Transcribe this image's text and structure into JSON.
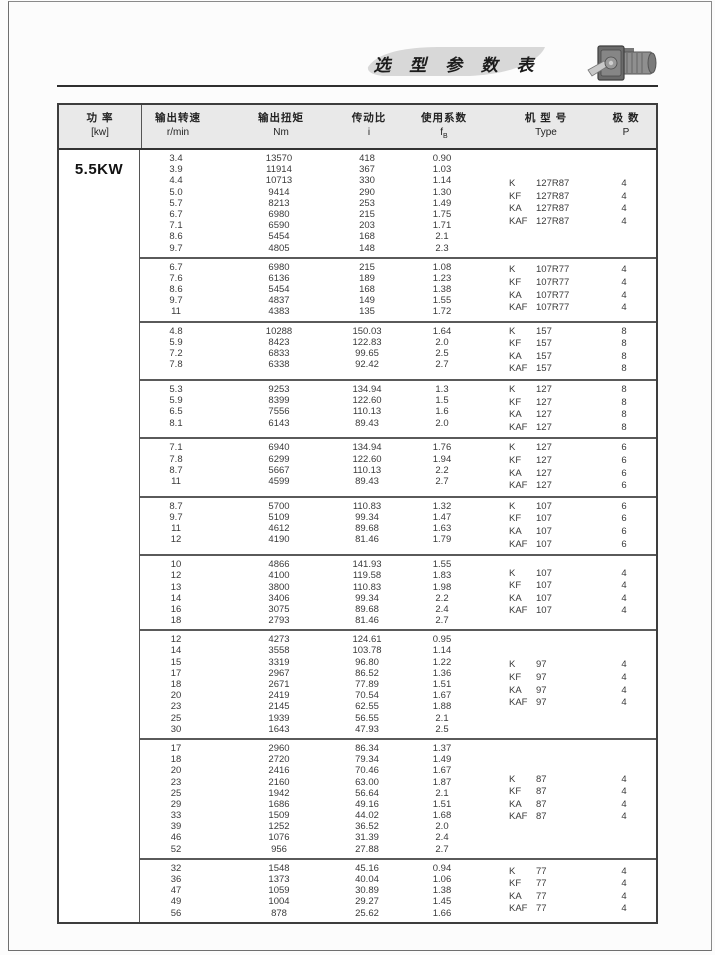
{
  "page": {
    "title": "选 型 参 数 表"
  },
  "colors": {
    "header_bg": "#e9e9e9",
    "banner_fill": "#d8d8d8",
    "rule": "#2e2e2e",
    "text": "#3a3a3a"
  },
  "table": {
    "power": "5.5KW",
    "headers": [
      {
        "line1": "功  率",
        "line2": "[kw]"
      },
      {
        "line1": "输出转速",
        "line2": "r/min"
      },
      {
        "line1": "输出扭矩",
        "line2": "Nm"
      },
      {
        "line1": "传动比",
        "line2": "i"
      },
      {
        "line1": "使用系数",
        "line2": "f",
        "line2_sub": "B"
      },
      {
        "line1": "机 型 号",
        "line2": "Type"
      },
      {
        "line1": "极  数",
        "line2": "P"
      }
    ],
    "blocks": [
      {
        "speeds": [
          "3.4",
          "3.9",
          "4.4",
          "5.0",
          "5.7",
          "6.7",
          "7.1",
          "8.6",
          "9.7"
        ],
        "torques": [
          "13570",
          "11914",
          "10713",
          "9414",
          "8213",
          "6980",
          "6590",
          "5454",
          "4805"
        ],
        "ratios": [
          "418",
          "367",
          "330",
          "290",
          "253",
          "215",
          "203",
          "168",
          "148"
        ],
        "factors": [
          "0.90",
          "1.03",
          "1.14",
          "1.30",
          "1.49",
          "1.75",
          "1.71",
          "2.1",
          "2.3"
        ],
        "types": [
          {
            "prefix": "K",
            "model": "127R87"
          },
          {
            "prefix": "KF",
            "model": "127R87"
          },
          {
            "prefix": "KA",
            "model": "127R87"
          },
          {
            "prefix": "KAF",
            "model": "127R87"
          }
        ],
        "poles": [
          "4",
          "4",
          "4",
          "4"
        ]
      },
      {
        "speeds": [
          "6.7",
          "7.6",
          "8.6",
          "9.7",
          "11"
        ],
        "torques": [
          "6980",
          "6136",
          "5454",
          "4837",
          "4383"
        ],
        "ratios": [
          "215",
          "189",
          "168",
          "149",
          "135"
        ],
        "factors": [
          "1.08",
          "1.23",
          "1.38",
          "1.55",
          "1.72"
        ],
        "types": [
          {
            "prefix": "K",
            "model": "107R77"
          },
          {
            "prefix": "KF",
            "model": "107R77"
          },
          {
            "prefix": "KA",
            "model": "107R77"
          },
          {
            "prefix": "KAF",
            "model": "107R77"
          }
        ],
        "poles": [
          "4",
          "4",
          "4",
          "4"
        ]
      },
      {
        "speeds": [
          "4.8",
          "5.9",
          "7.2",
          "7.8"
        ],
        "torques": [
          "10288",
          "8423",
          "6833",
          "6338"
        ],
        "ratios": [
          "150.03",
          "122.83",
          "99.65",
          "92.42"
        ],
        "factors": [
          "1.64",
          "2.0",
          "2.5",
          "2.7"
        ],
        "types": [
          {
            "prefix": "K",
            "model": "157"
          },
          {
            "prefix": "KF",
            "model": "157"
          },
          {
            "prefix": "KA",
            "model": "157"
          },
          {
            "prefix": "KAF",
            "model": "157"
          }
        ],
        "poles": [
          "8",
          "8",
          "8",
          "8"
        ]
      },
      {
        "speeds": [
          "5.3",
          "5.9",
          "6.5",
          "8.1"
        ],
        "torques": [
          "9253",
          "8399",
          "7556",
          "6143"
        ],
        "ratios": [
          "134.94",
          "122.60",
          "110.13",
          "89.43"
        ],
        "factors": [
          "1.3",
          "1.5",
          "1.6",
          "2.0"
        ],
        "types": [
          {
            "prefix": "K",
            "model": "127"
          },
          {
            "prefix": "KF",
            "model": "127"
          },
          {
            "prefix": "KA",
            "model": "127"
          },
          {
            "prefix": "KAF",
            "model": "127"
          }
        ],
        "poles": [
          "8",
          "8",
          "8",
          "8"
        ]
      },
      {
        "speeds": [
          "7.1",
          "7.8",
          "8.7",
          "11"
        ],
        "torques": [
          "6940",
          "6299",
          "5667",
          "4599"
        ],
        "ratios": [
          "134.94",
          "122.60",
          "110.13",
          "89.43"
        ],
        "factors": [
          "1.76",
          "1.94",
          "2.2",
          "2.7"
        ],
        "types": [
          {
            "prefix": "K",
            "model": "127"
          },
          {
            "prefix": "KF",
            "model": "127"
          },
          {
            "prefix": "KA",
            "model": "127"
          },
          {
            "prefix": "KAF",
            "model": "127"
          }
        ],
        "poles": [
          "6",
          "6",
          "6",
          "6"
        ]
      },
      {
        "speeds": [
          "8.7",
          "9.7",
          "11",
          "12"
        ],
        "torques": [
          "5700",
          "5109",
          "4612",
          "4190"
        ],
        "ratios": [
          "110.83",
          "99.34",
          "89.68",
          "81.46"
        ],
        "factors": [
          "1.32",
          "1.47",
          "1.63",
          "1.79"
        ],
        "types": [
          {
            "prefix": "K",
            "model": "107"
          },
          {
            "prefix": "KF",
            "model": "107"
          },
          {
            "prefix": "KA",
            "model": "107"
          },
          {
            "prefix": "KAF",
            "model": "107"
          }
        ],
        "poles": [
          "6",
          "6",
          "6",
          "6"
        ]
      },
      {
        "speeds": [
          "10",
          "12",
          "13",
          "14",
          "16",
          "18"
        ],
        "torques": [
          "4866",
          "4100",
          "3800",
          "3406",
          "3075",
          "2793"
        ],
        "ratios": [
          "141.93",
          "119.58",
          "110.83",
          "99.34",
          "89.68",
          "81.46"
        ],
        "factors": [
          "1.55",
          "1.83",
          "1.98",
          "2.2",
          "2.4",
          "2.7"
        ],
        "types": [
          {
            "prefix": "K",
            "model": "107"
          },
          {
            "prefix": "KF",
            "model": "107"
          },
          {
            "prefix": "KA",
            "model": "107"
          },
          {
            "prefix": "KAF",
            "model": "107"
          }
        ],
        "poles": [
          "4",
          "4",
          "4",
          "4"
        ]
      },
      {
        "speeds": [
          "12",
          "14",
          "15",
          "17",
          "18",
          "20",
          "23",
          "25",
          "30"
        ],
        "torques": [
          "4273",
          "3558",
          "3319",
          "2967",
          "2671",
          "2419",
          "2145",
          "1939",
          "1643"
        ],
        "ratios": [
          "124.61",
          "103.78",
          "96.80",
          "86.52",
          "77.89",
          "70.54",
          "62.55",
          "56.55",
          "47.93"
        ],
        "factors": [
          "0.95",
          "1.14",
          "1.22",
          "1.36",
          "1.51",
          "1.67",
          "1.88",
          "2.1",
          "2.5"
        ],
        "types": [
          {
            "prefix": "K",
            "model": "97"
          },
          {
            "prefix": "KF",
            "model": "97"
          },
          {
            "prefix": "KA",
            "model": "97"
          },
          {
            "prefix": "KAF",
            "model": "97"
          }
        ],
        "poles": [
          "4",
          "4",
          "4",
          "4"
        ]
      },
      {
        "speeds": [
          "17",
          "18",
          "20",
          "23",
          "25",
          "29",
          "33",
          "39",
          "46",
          "52"
        ],
        "torques": [
          "2960",
          "2720",
          "2416",
          "2160",
          "1942",
          "1686",
          "1509",
          "1252",
          "1076",
          "956"
        ],
        "ratios": [
          "86.34",
          "79.34",
          "70.46",
          "63.00",
          "56.64",
          "49.16",
          "44.02",
          "36.52",
          "31.39",
          "27.88"
        ],
        "factors": [
          "1.37",
          "1.49",
          "1.67",
          "1.87",
          "2.1",
          "1.51",
          "1.68",
          "2.0",
          "2.4",
          "2.7"
        ],
        "types": [
          {
            "prefix": "K",
            "model": "87"
          },
          {
            "prefix": "KF",
            "model": "87"
          },
          {
            "prefix": "KA",
            "model": "87"
          },
          {
            "prefix": "KAF",
            "model": "87"
          }
        ],
        "poles": [
          "4",
          "4",
          "4",
          "4"
        ]
      },
      {
        "speeds": [
          "32",
          "36",
          "47",
          "49",
          "56"
        ],
        "torques": [
          "1548",
          "1373",
          "1059",
          "1004",
          "878"
        ],
        "ratios": [
          "45.16",
          "40.04",
          "30.89",
          "29.27",
          "25.62"
        ],
        "factors": [
          "0.94",
          "1.06",
          "1.38",
          "1.45",
          "1.66"
        ],
        "types": [
          {
            "prefix": "K",
            "model": "77"
          },
          {
            "prefix": "KF",
            "model": "77"
          },
          {
            "prefix": "KA",
            "model": "77"
          },
          {
            "prefix": "KAF",
            "model": "77"
          }
        ],
        "poles": [
          "4",
          "4",
          "4",
          "4"
        ]
      }
    ]
  }
}
